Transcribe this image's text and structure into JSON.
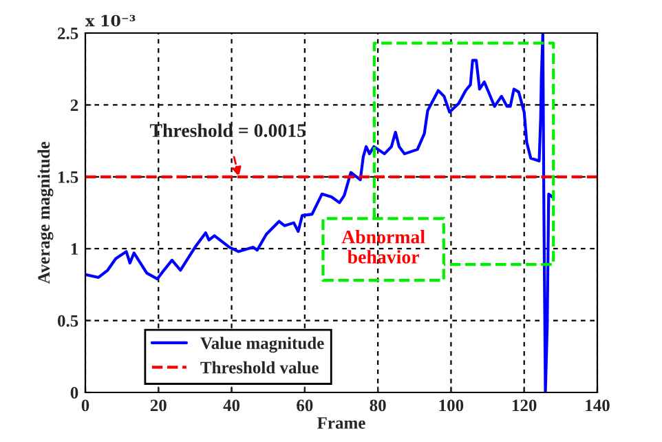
{
  "chart_data": {
    "type": "line",
    "xlabel": "Frame",
    "ylabel": "Average magnitude",
    "xlim": [
      0,
      140
    ],
    "xticks": [
      0,
      20,
      40,
      60,
      80,
      100,
      120,
      140
    ],
    "ylim": [
      0,
      2.5
    ],
    "yticks": [
      0,
      0.5,
      1,
      1.5,
      2,
      2.5
    ],
    "grid": true,
    "legend": "bottom left",
    "line_style": "solid",
    "series": [
      {
        "name": "Value magnitude",
        "color": "#0000ff",
        "x": [
          0,
          3.6,
          6.1,
          8.3,
          11.2,
          12.2,
          13.3,
          16.8,
          19.7,
          21.2,
          23.7,
          26,
          30,
          32.9,
          33.8,
          35.3,
          39.4,
          41.9,
          45.9,
          47,
          49.5,
          53,
          54.5,
          57,
          58.2,
          59.3,
          62,
          64.7,
          67.3,
          69.5,
          70.8,
          72.6,
          75.2,
          76,
          76.8,
          77.7,
          78.9,
          81.8,
          83.7,
          84.8,
          85.8,
          87.3,
          90.8,
          92.7,
          93.6,
          96.5,
          98.1,
          99.6,
          102.1,
          104,
          105.3,
          105.9,
          106.9,
          107.8,
          109.1,
          111.9,
          113.8,
          115.3,
          116.2,
          117.2,
          118.5,
          120,
          120.7,
          121.8,
          124.1,
          124.5,
          124.7,
          125.1,
          125.4,
          125.8,
          126.3,
          126.5,
          126.7,
          127.7
        ],
        "values": [
          0.82,
          0.8,
          0.85,
          0.93,
          0.98,
          0.9,
          0.97,
          0.83,
          0.79,
          0.84,
          0.92,
          0.85,
          1.01,
          1.11,
          1.06,
          1.09,
          1.01,
          0.98,
          1.01,
          0.99,
          1.1,
          1.19,
          1.16,
          1.18,
          1.12,
          1.23,
          1.24,
          1.38,
          1.36,
          1.32,
          1.37,
          1.53,
          1.48,
          1.64,
          1.71,
          1.66,
          1.71,
          1.66,
          1.71,
          1.81,
          1.71,
          1.66,
          1.69,
          1.8,
          1.96,
          2.1,
          2.06,
          1.95,
          2.01,
          2.1,
          2.14,
          2.31,
          2.31,
          2.11,
          2.16,
          1.99,
          2.06,
          1.99,
          1.99,
          2.11,
          2.09,
          1.95,
          1.74,
          1.63,
          1.61,
          1.9,
          2.19,
          2.5,
          1.25,
          0,
          0.46,
          0.91,
          1.38,
          1.36
        ]
      }
    ],
    "ref_lines": [
      {
        "axis": "y",
        "value": 1.5,
        "label": "Threshold value",
        "color": "#ff0000",
        "line_style": "dashed"
      }
    ],
    "annotations": [
      {
        "text": "Threshold = 0.0015",
        "x": 42,
        "y": 1.5
      },
      "Abnormal\nbehavior",
      "x 10⁻³"
    ]
  }
}
